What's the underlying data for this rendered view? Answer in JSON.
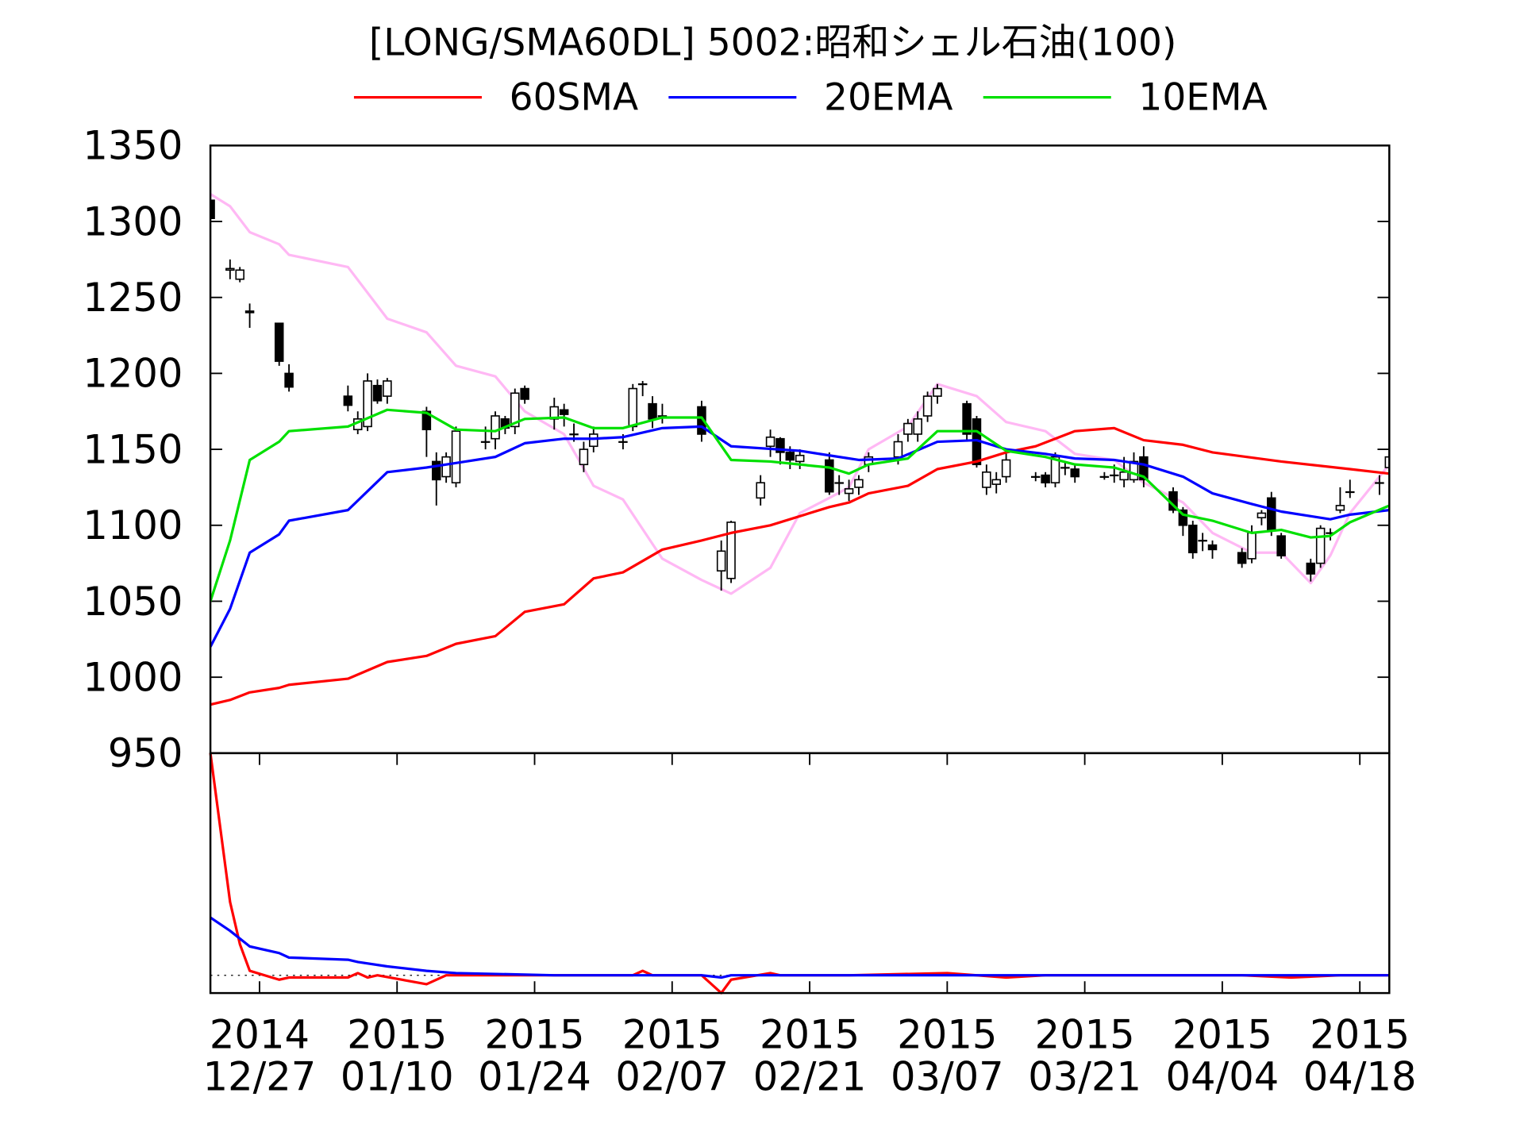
{
  "chart_data": [
    {
      "type": "candlestick",
      "title": "[LONG/SMA60DL] 5002:昭和シェル石油(100)",
      "x": [
        -5,
        -3,
        -2,
        -1,
        2,
        3,
        9,
        10,
        11,
        12,
        13,
        17,
        18,
        19,
        20,
        23,
        24,
        25,
        26,
        27,
        30,
        31,
        32,
        33,
        34,
        37,
        38,
        39,
        40,
        41,
        45,
        47,
        48,
        51,
        52,
        53,
        54,
        55,
        58,
        59,
        60,
        61,
        62,
        65,
        66,
        67,
        68,
        69,
        72,
        73,
        74,
        75,
        76,
        79,
        80,
        81,
        82,
        83,
        86,
        87,
        88,
        89,
        90,
        93,
        94,
        95,
        96,
        97,
        100,
        101,
        102,
        103,
        104,
        107,
        108,
        109,
        110,
        111,
        114,
        115
      ],
      "open": [
        1314,
        1268,
        1262,
        1241,
        1233,
        1200,
        1185,
        1163,
        1165,
        1192,
        1185,
        1175,
        1142,
        1132,
        1128,
        1155,
        1157,
        1170,
        1165,
        1190,
        1170,
        1176,
        1160,
        1140,
        1152,
        1155,
        1165,
        1193,
        1180,
        1172,
        1178,
        1070,
        1065,
        1118,
        1152,
        1157,
        1148,
        1142,
        1143,
        1128,
        1121,
        1125,
        1140,
        1145,
        1160,
        1160,
        1172,
        1185,
        1180,
        1170,
        1125,
        1127,
        1132,
        1132,
        1133,
        1128,
        1138,
        1137,
        1132,
        1133,
        1130,
        1130,
        1145,
        1122,
        1110,
        1100,
        1090,
        1087,
        1082,
        1078,
        1105,
        1118,
        1093,
        1075,
        1075,
        1095,
        1110,
        1122,
        1128,
        1138
      ],
      "high": [
        1316,
        1275,
        1270,
        1246,
        1233,
        1206,
        1192,
        1175,
        1200,
        1196,
        1197,
        1178,
        1148,
        1148,
        1165,
        1165,
        1175,
        1172,
        1190,
        1192,
        1184,
        1180,
        1167,
        1155,
        1165,
        1160,
        1193,
        1195,
        1185,
        1180,
        1182,
        1090,
        1103,
        1133,
        1163,
        1158,
        1152,
        1150,
        1148,
        1133,
        1130,
        1133,
        1148,
        1160,
        1170,
        1175,
        1188,
        1193,
        1182,
        1172,
        1140,
        1135,
        1150,
        1135,
        1135,
        1148,
        1142,
        1140,
        1135,
        1140,
        1145,
        1148,
        1152,
        1125,
        1112,
        1103,
        1095,
        1090,
        1085,
        1100,
        1110,
        1122,
        1095,
        1078,
        1100,
        1098,
        1125,
        1130,
        1133,
        1147
      ],
      "low": [
        1300,
        1262,
        1260,
        1230,
        1205,
        1188,
        1175,
        1160,
        1162,
        1180,
        1180,
        1145,
        1113,
        1128,
        1125,
        1150,
        1150,
        1160,
        1160,
        1180,
        1163,
        1165,
        1155,
        1135,
        1148,
        1150,
        1162,
        1185,
        1164,
        1167,
        1155,
        1057,
        1062,
        1113,
        1145,
        1140,
        1137,
        1137,
        1120,
        1120,
        1116,
        1120,
        1135,
        1140,
        1155,
        1155,
        1168,
        1180,
        1155,
        1138,
        1120,
        1121,
        1128,
        1129,
        1125,
        1125,
        1133,
        1128,
        1130,
        1128,
        1125,
        1128,
        1125,
        1108,
        1093,
        1078,
        1083,
        1078,
        1072,
        1075,
        1100,
        1093,
        1078,
        1063,
        1072,
        1090,
        1108,
        1118,
        1120,
        1132
      ],
      "close": [
        1302,
        1269,
        1268,
        1240,
        1208,
        1191,
        1179,
        1170,
        1195,
        1182,
        1195,
        1163,
        1130,
        1145,
        1162,
        1155,
        1172,
        1164,
        1187,
        1183,
        1178,
        1173,
        1160,
        1150,
        1160,
        1155,
        1190,
        1193,
        1170,
        1172,
        1160,
        1083,
        1102,
        1128,
        1158,
        1148,
        1143,
        1146,
        1122,
        1128,
        1124,
        1130,
        1145,
        1155,
        1167,
        1170,
        1185,
        1190,
        1160,
        1140,
        1135,
        1130,
        1143,
        1132,
        1128,
        1145,
        1138,
        1132,
        1132,
        1133,
        1135,
        1142,
        1130,
        1110,
        1100,
        1082,
        1090,
        1084,
        1075,
        1095,
        1108,
        1097,
        1080,
        1068,
        1098,
        1095,
        1113,
        1122,
        1128,
        1145
      ],
      "series": [
        {
          "name": "60SMA",
          "color": "#ff0000",
          "x": [
            -5,
            -3,
            -1,
            2,
            3,
            9,
            13,
            17,
            20,
            24,
            27,
            31,
            34,
            37,
            41,
            45,
            48,
            52,
            58,
            60,
            62,
            66,
            69,
            73,
            76,
            79,
            83,
            87,
            90,
            94,
            97,
            104,
            111,
            115
          ],
          "values": [
            982,
            985,
            990,
            993,
            995,
            999,
            1010,
            1014,
            1022,
            1027,
            1043,
            1048,
            1065,
            1069,
            1084,
            1090,
            1095,
            1100,
            1112,
            1115,
            1121,
            1126,
            1137,
            1142,
            1148,
            1152,
            1162,
            1164,
            1156,
            1153,
            1148,
            1142,
            1137,
            1134
          ]
        },
        {
          "name": "20EMA",
          "color": "#0000ff",
          "x": [
            -5,
            -3,
            -1,
            2,
            3,
            9,
            13,
            17,
            20,
            24,
            27,
            31,
            34,
            37,
            41,
            45,
            48,
            55,
            58,
            61,
            65,
            69,
            73,
            76,
            80,
            83,
            87,
            90,
            94,
            97,
            101,
            104,
            107,
            109,
            111,
            115
          ],
          "values": [
            1020,
            1045,
            1082,
            1094,
            1103,
            1110,
            1135,
            1138,
            1141,
            1145,
            1154,
            1157,
            1157,
            1158,
            1164,
            1165,
            1152,
            1149,
            1146,
            1143,
            1144,
            1155,
            1156,
            1150,
            1147,
            1144,
            1143,
            1140,
            1132,
            1121,
            1114,
            1109,
            1106,
            1104,
            1107,
            1110
          ]
        },
        {
          "name": "10EMA",
          "color": "#00e000",
          "x": [
            -5,
            -3,
            -1,
            2,
            3,
            9,
            13,
            17,
            20,
            24,
            27,
            31,
            34,
            37,
            41,
            45,
            48,
            52,
            58,
            60,
            62,
            66,
            69,
            73,
            76,
            80,
            83,
            87,
            90,
            94,
            97,
            101,
            104,
            107,
            109,
            111,
            115
          ],
          "values": [
            1050,
            1090,
            1143,
            1155,
            1162,
            1165,
            1176,
            1174,
            1163,
            1162,
            1170,
            1171,
            1164,
            1164,
            1171,
            1171,
            1143,
            1142,
            1138,
            1134,
            1140,
            1144,
            1162,
            1162,
            1149,
            1145,
            1140,
            1138,
            1132,
            1107,
            1103,
            1095,
            1097,
            1092,
            1093,
            1102,
            1113
          ]
        },
        {
          "color": "#ffb8f4",
          "x": [
            -5,
            -3,
            -1,
            2,
            3,
            9,
            13,
            17,
            20,
            24,
            27,
            31,
            34,
            37,
            41,
            45,
            48,
            52,
            55,
            58,
            60,
            62,
            66,
            69,
            73,
            76,
            80,
            83,
            87,
            90,
            94,
            97,
            101,
            104,
            107,
            109,
            111,
            115
          ],
          "values": [
            1318,
            1310,
            1293,
            1285,
            1278,
            1270,
            1236,
            1227,
            1205,
            1198,
            1175,
            1160,
            1126,
            1117,
            1078,
            1064,
            1055,
            1072,
            1108,
            1118,
            1125,
            1150,
            1165,
            1193,
            1185,
            1168,
            1162,
            1147,
            1143,
            1128,
            1115,
            1095,
            1082,
            1082,
            1062,
            1080,
            1108,
            1140
          ]
        }
      ],
      "xlim": [
        -5,
        115
      ],
      "ylim": [
        950,
        1350
      ],
      "yticks": [
        950,
        1000,
        1050,
        1100,
        1150,
        1200,
        1250,
        1300,
        1350
      ]
    },
    {
      "type": "line",
      "series": [
        {
          "color": "#ff0000",
          "x": [
            -5,
            -3,
            -2,
            -1,
            2,
            3,
            9,
            10,
            11,
            12,
            17,
            19,
            30,
            38,
            39,
            40,
            45,
            47,
            48,
            52,
            53,
            60,
            70,
            76,
            80,
            90,
            100,
            105,
            110,
            115
          ],
          "values": [
            100,
            33,
            14,
            2,
            -2,
            -1,
            -1,
            1,
            -1,
            0,
            -4,
            0,
            0,
            0,
            2,
            0,
            0,
            -8,
            -2,
            1,
            0,
            0,
            1,
            -1,
            0,
            0,
            0,
            -1,
            0,
            0
          ]
        },
        {
          "color": "#0000ff",
          "x": [
            -5,
            -3,
            -1,
            2,
            3,
            9,
            10,
            13,
            17,
            20,
            30,
            40,
            45,
            47,
            48,
            60,
            115
          ],
          "values": [
            26,
            20,
            13,
            10,
            8,
            7,
            6,
            4,
            2,
            1,
            0,
            0,
            0,
            -1,
            0,
            0,
            0
          ]
        }
      ],
      "xlim": [
        -5,
        115
      ],
      "ylim": [
        -8,
        100
      ],
      "xticks": [
        {
          "value": 0,
          "label": [
            "2014",
            "12/27"
          ]
        },
        {
          "value": 14,
          "label": [
            "2015",
            "01/10"
          ]
        },
        {
          "value": 28,
          "label": [
            "2015",
            "01/24"
          ]
        },
        {
          "value": 42,
          "label": [
            "2015",
            "02/07"
          ]
        },
        {
          "value": 56,
          "label": [
            "2015",
            "02/21"
          ]
        },
        {
          "value": 70,
          "label": [
            "2015",
            "03/07"
          ]
        },
        {
          "value": 84,
          "label": [
            "2015",
            "03/21"
          ]
        },
        {
          "value": 98,
          "label": [
            "2015",
            "04/04"
          ]
        },
        {
          "value": 112,
          "label": [
            "2015",
            "04/18"
          ]
        }
      ]
    }
  ]
}
